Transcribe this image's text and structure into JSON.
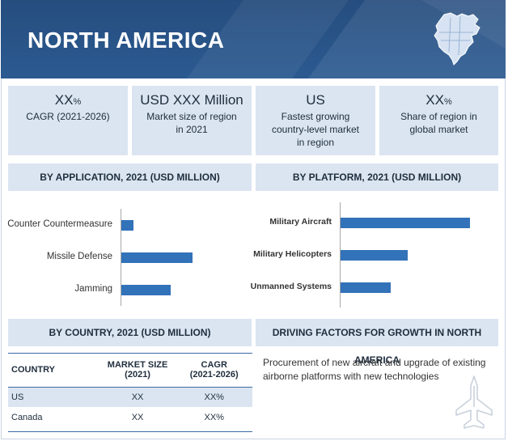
{
  "header": {
    "title": "NORTH AMERICA"
  },
  "kpis": [
    {
      "big": "XX",
      "big_suffix": "%",
      "small": "CAGR (2021-2026)"
    },
    {
      "big": "USD XXX Million",
      "big_suffix": "",
      "small": "Market size of region in 2021"
    },
    {
      "big": "US",
      "big_suffix": "",
      "small": "Fastest growing country-level market in region"
    },
    {
      "big": "XX",
      "big_suffix": "%",
      "small": "Share of region in global market"
    }
  ],
  "sections": {
    "application": "BY APPLICATION, 2021 (USD MILLION)",
    "platform": "BY PLATFORM, 2021 (USD MILLION)",
    "country": "BY COUNTRY, 2021 (USD MILLION)",
    "drivers": "DRIVING FACTORS FOR GROWTH IN NORTH AMERICA"
  },
  "chart_data": [
    {
      "type": "bar",
      "orientation": "horizontal",
      "title": "BY APPLICATION, 2021 (USD MILLION)",
      "categories": [
        "Counter Countermeasure",
        "Missile Defense",
        "Jamming"
      ],
      "values": [
        1.5,
        9.0,
        6.2
      ],
      "xlim": [
        0,
        10
      ],
      "grid": false,
      "bar_color": "#3272b9"
    },
    {
      "type": "bar",
      "orientation": "horizontal",
      "title": "BY PLATFORM, 2021 (USD MILLION)",
      "categories": [
        "Military Aircraft",
        "Military Helicopters",
        "Unmanned Systems"
      ],
      "values": [
        10.0,
        5.2,
        3.9
      ],
      "xlim": [
        0,
        10
      ],
      "grid": false,
      "bar_color": "#3272b9"
    }
  ],
  "country_table": {
    "headers": [
      "COUNTRY",
      "MARKET SIZE\n(2021)",
      "CAGR\n(2021-2026)"
    ],
    "rows": [
      [
        "US",
        "XX",
        "XX%"
      ],
      [
        "Canada",
        "XX",
        "XX%"
      ]
    ]
  },
  "drivers": {
    "text": "Procurement of new aircraft and upgrade of existing airborne platforms with new technologies"
  },
  "icons": {
    "map": "north-america-map-icon",
    "jet": "fighter-jet-icon"
  }
}
